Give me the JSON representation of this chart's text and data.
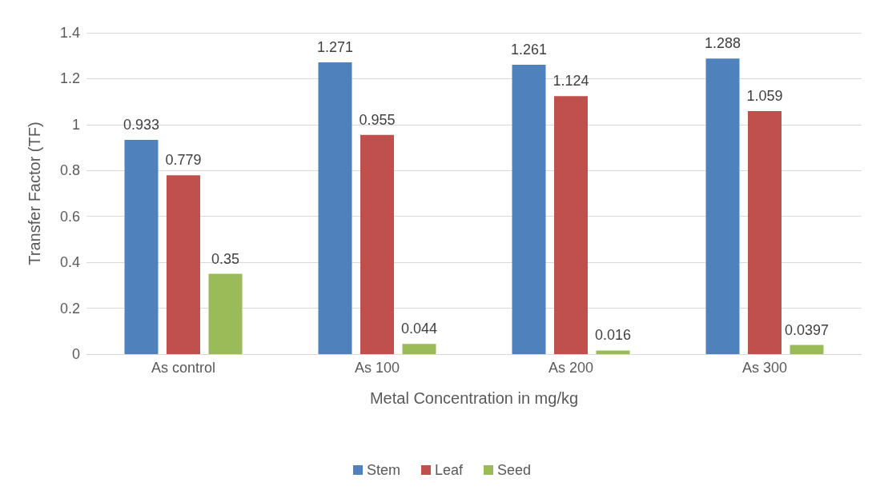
{
  "chart_data": {
    "type": "bar",
    "xlabel": "Metal Concentration in mg/kg",
    "ylabel": "Transfer Factor (TF)",
    "categories": [
      "As control",
      "As 100",
      "As 200",
      "As 300"
    ],
    "series": [
      {
        "name": "Stem",
        "color": "#4f81bd",
        "values": [
          0.933,
          1.271,
          1.261,
          1.288
        ]
      },
      {
        "name": "Leaf",
        "color": "#c0504d",
        "values": [
          0.779,
          0.955,
          1.124,
          1.059
        ]
      },
      {
        "name": "Seed",
        "color": "#9bbb59",
        "values": [
          0.35,
          0.044,
          0.016,
          0.0397
        ]
      }
    ],
    "ylim": [
      0,
      1.4
    ],
    "yticks": [
      0,
      0.2,
      0.4,
      0.6,
      0.8,
      1,
      1.2,
      1.4
    ],
    "grid": "y",
    "legend": "bottom",
    "data_labels": true
  }
}
